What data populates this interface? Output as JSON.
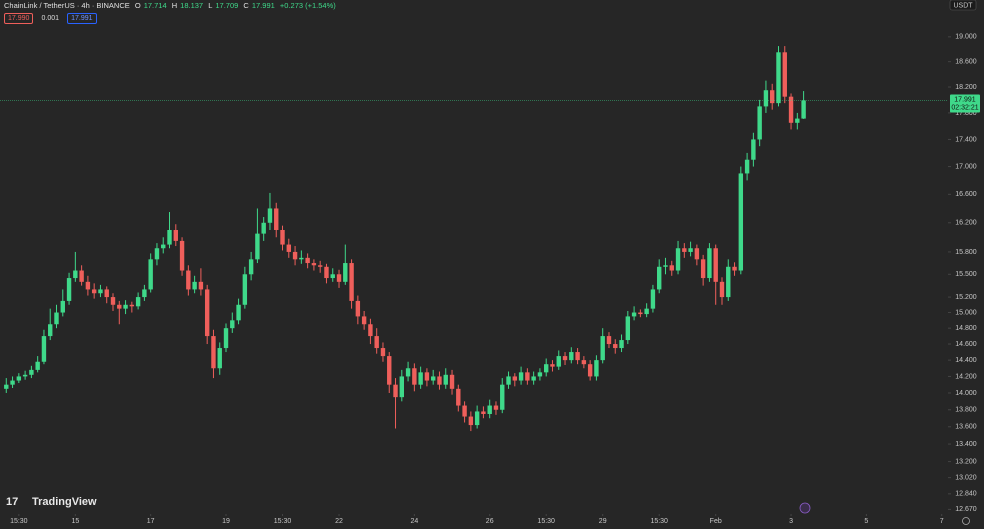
{
  "header": {
    "symbol": "ChainLink / TetherUS · 4h · BINANCE",
    "ohlc_letters": [
      "O",
      "H",
      "L",
      "C"
    ],
    "change": "+0.273 (+1.54%)",
    "bid": "17.990",
    "spread": "0.001",
    "ask": "17.991",
    "currency": "USDT",
    "countdown": "02:32:21",
    "logo": "TradingView"
  },
  "chart_data": {
    "type": "candlestick",
    "log_scale": true,
    "up_color": "#3fd98a",
    "down_color": "#ef5f5b",
    "last_price_line": true,
    "xlim": [
      -1,
      150
    ],
    "ylim": [
      12.62,
      19.61
    ],
    "xticks": [
      {
        "value": 2,
        "label": "15:30"
      },
      {
        "value": 11,
        "label": "15"
      },
      {
        "value": 23,
        "label": "17"
      },
      {
        "value": 35,
        "label": "19"
      },
      {
        "value": 44,
        "label": "15:30"
      },
      {
        "value": 53,
        "label": "22"
      },
      {
        "value": 65,
        "label": "24"
      },
      {
        "value": 77,
        "label": "26"
      },
      {
        "value": 86,
        "label": "15:30"
      },
      {
        "value": 95,
        "label": "29"
      },
      {
        "value": 104,
        "label": "15:30"
      },
      {
        "value": 113,
        "label": "Feb"
      },
      {
        "value": 125,
        "label": "3"
      },
      {
        "value": 137,
        "label": "5"
      },
      {
        "value": 149,
        "label": "7"
      }
    ],
    "yticks": [
      {
        "value": 19,
        "label": "19.000"
      },
      {
        "value": 18.6,
        "label": "18.600"
      },
      {
        "value": 18.2,
        "label": "18.200"
      },
      {
        "value": 17.8,
        "label": "17.800"
      },
      {
        "value": 17.4,
        "label": "17.400"
      },
      {
        "value": 17,
        "label": "17.000"
      },
      {
        "value": 16.6,
        "label": "16.600"
      },
      {
        "value": 16.2,
        "label": "16.200"
      },
      {
        "value": 15.8,
        "label": "15.800"
      },
      {
        "value": 15.5,
        "label": "15.500"
      },
      {
        "value": 15.2,
        "label": "15.200"
      },
      {
        "value": 15,
        "label": "15.000"
      },
      {
        "value": 14.8,
        "label": "14.800"
      },
      {
        "value": 14.6,
        "label": "14.600"
      },
      {
        "value": 14.4,
        "label": "14.400"
      },
      {
        "value": 14.2,
        "label": "14.200"
      },
      {
        "value": 14,
        "label": "14.000"
      },
      {
        "value": 13.8,
        "label": "13.800"
      },
      {
        "value": 13.6,
        "label": "13.600"
      },
      {
        "value": 13.4,
        "label": "13.400"
      },
      {
        "value": 13.2,
        "label": "13.200"
      },
      {
        "value": 13.02,
        "label": "13.020"
      },
      {
        "value": 12.84,
        "label": "12.840"
      },
      {
        "value": 12.67,
        "label": "12.670"
      }
    ],
    "ohlc": [
      [
        14.05,
        14.18,
        14.0,
        14.1
      ],
      [
        14.1,
        14.2,
        14.06,
        14.15
      ],
      [
        14.15,
        14.24,
        14.12,
        14.2
      ],
      [
        14.2,
        14.27,
        14.16,
        14.22
      ],
      [
        14.22,
        14.33,
        14.18,
        14.28
      ],
      [
        14.28,
        14.45,
        14.25,
        14.38
      ],
      [
        14.38,
        14.78,
        14.35,
        14.7
      ],
      [
        14.7,
        15.05,
        14.65,
        14.85
      ],
      [
        14.85,
        15.1,
        14.8,
        15.0
      ],
      [
        15.0,
        15.3,
        14.95,
        15.15
      ],
      [
        15.15,
        15.52,
        15.1,
        15.45
      ],
      [
        15.45,
        15.8,
        15.4,
        15.55
      ],
      [
        15.55,
        15.62,
        15.35,
        15.4
      ],
      [
        15.4,
        15.48,
        15.22,
        15.3
      ],
      [
        15.3,
        15.38,
        15.18,
        15.25
      ],
      [
        15.25,
        15.36,
        15.2,
        15.3
      ],
      [
        15.3,
        15.34,
        15.12,
        15.2
      ],
      [
        15.2,
        15.25,
        15.02,
        15.1
      ],
      [
        15.1,
        15.15,
        14.85,
        15.05
      ],
      [
        15.05,
        15.16,
        14.98,
        15.1
      ],
      [
        15.1,
        15.14,
        15.0,
        15.08
      ],
      [
        15.08,
        15.26,
        15.04,
        15.2
      ],
      [
        15.2,
        15.36,
        15.15,
        15.3
      ],
      [
        15.3,
        15.78,
        15.26,
        15.7
      ],
      [
        15.7,
        15.92,
        15.62,
        15.85
      ],
      [
        15.85,
        16.0,
        15.78,
        15.9
      ],
      [
        15.9,
        16.35,
        15.85,
        16.1
      ],
      [
        16.1,
        16.18,
        15.88,
        15.95
      ],
      [
        15.95,
        16.0,
        15.48,
        15.55
      ],
      [
        15.55,
        15.62,
        15.22,
        15.3
      ],
      [
        15.3,
        15.48,
        15.25,
        15.4
      ],
      [
        15.4,
        15.58,
        15.22,
        15.3
      ],
      [
        15.3,
        15.36,
        14.6,
        14.7
      ],
      [
        14.7,
        14.78,
        14.18,
        14.3
      ],
      [
        14.3,
        14.62,
        14.22,
        14.55
      ],
      [
        14.55,
        14.86,
        14.5,
        14.8
      ],
      [
        14.8,
        15.0,
        14.74,
        14.9
      ],
      [
        14.9,
        15.18,
        14.85,
        15.1
      ],
      [
        15.1,
        15.6,
        15.05,
        15.5
      ],
      [
        15.5,
        15.8,
        15.42,
        15.7
      ],
      [
        15.7,
        16.4,
        15.65,
        16.05
      ],
      [
        16.05,
        16.28,
        15.95,
        16.2
      ],
      [
        16.2,
        16.62,
        16.1,
        16.4
      ],
      [
        16.4,
        16.48,
        16.0,
        16.1
      ],
      [
        16.1,
        16.16,
        15.82,
        15.9
      ],
      [
        15.9,
        15.98,
        15.72,
        15.8
      ],
      [
        15.8,
        15.88,
        15.62,
        15.7
      ],
      [
        15.7,
        15.82,
        15.64,
        15.72
      ],
      [
        15.72,
        15.78,
        15.58,
        15.65
      ],
      [
        15.65,
        15.7,
        15.55,
        15.62
      ],
      [
        15.62,
        15.68,
        15.52,
        15.6
      ],
      [
        15.6,
        15.64,
        15.38,
        15.45
      ],
      [
        15.45,
        15.58,
        15.4,
        15.5
      ],
      [
        15.5,
        15.56,
        15.32,
        15.4
      ],
      [
        15.4,
        15.9,
        15.36,
        15.65
      ],
      [
        15.65,
        15.7,
        15.05,
        15.15
      ],
      [
        15.15,
        15.22,
        14.85,
        14.95
      ],
      [
        14.95,
        15.02,
        14.78,
        14.85
      ],
      [
        14.85,
        14.92,
        14.6,
        14.7
      ],
      [
        14.7,
        14.8,
        14.48,
        14.55
      ],
      [
        14.55,
        14.62,
        14.38,
        14.45
      ],
      [
        14.45,
        14.5,
        14.0,
        14.1
      ],
      [
        14.1,
        14.18,
        13.58,
        13.95
      ],
      [
        13.95,
        14.28,
        13.9,
        14.2
      ],
      [
        14.2,
        14.38,
        14.14,
        14.3
      ],
      [
        14.3,
        14.36,
        14.02,
        14.1
      ],
      [
        14.1,
        14.32,
        14.05,
        14.25
      ],
      [
        14.25,
        14.3,
        14.08,
        14.15
      ],
      [
        14.15,
        14.28,
        14.1,
        14.2
      ],
      [
        14.2,
        14.26,
        14.04,
        14.1
      ],
      [
        14.1,
        14.3,
        14.05,
        14.22
      ],
      [
        14.22,
        14.28,
        13.98,
        14.05
      ],
      [
        14.05,
        14.1,
        13.78,
        13.85
      ],
      [
        13.85,
        13.9,
        13.65,
        13.72
      ],
      [
        13.72,
        13.78,
        13.55,
        13.62
      ],
      [
        13.62,
        13.85,
        13.58,
        13.78
      ],
      [
        13.78,
        13.84,
        13.7,
        13.75
      ],
      [
        13.75,
        13.92,
        13.7,
        13.85
      ],
      [
        13.85,
        13.9,
        13.74,
        13.8
      ],
      [
        13.8,
        14.18,
        13.76,
        14.1
      ],
      [
        14.1,
        14.26,
        14.05,
        14.2
      ],
      [
        14.2,
        14.24,
        14.08,
        14.15
      ],
      [
        14.15,
        14.32,
        14.1,
        14.25
      ],
      [
        14.25,
        14.3,
        14.1,
        14.15
      ],
      [
        14.15,
        14.26,
        14.1,
        14.2
      ],
      [
        14.2,
        14.3,
        14.15,
        14.25
      ],
      [
        14.25,
        14.42,
        14.2,
        14.35
      ],
      [
        14.35,
        14.4,
        14.26,
        14.32
      ],
      [
        14.32,
        14.52,
        14.28,
        14.45
      ],
      [
        14.45,
        14.5,
        14.34,
        14.4
      ],
      [
        14.4,
        14.56,
        14.36,
        14.5
      ],
      [
        14.5,
        14.55,
        14.35,
        14.4
      ],
      [
        14.4,
        14.45,
        14.3,
        14.35
      ],
      [
        14.35,
        14.4,
        14.15,
        14.2
      ],
      [
        14.2,
        14.46,
        14.15,
        14.4
      ],
      [
        14.4,
        14.8,
        14.36,
        14.7
      ],
      [
        14.7,
        14.75,
        14.55,
        14.6
      ],
      [
        14.6,
        14.66,
        14.48,
        14.55
      ],
      [
        14.55,
        14.72,
        14.5,
        14.65
      ],
      [
        14.65,
        15.02,
        14.6,
        14.95
      ],
      [
        14.95,
        15.08,
        14.9,
        15.0
      ],
      [
        15.0,
        15.04,
        14.94,
        14.98
      ],
      [
        14.98,
        15.12,
        14.94,
        15.05
      ],
      [
        15.05,
        15.36,
        15.0,
        15.3
      ],
      [
        15.3,
        15.7,
        15.25,
        15.6
      ],
      [
        15.6,
        15.72,
        15.5,
        15.62
      ],
      [
        15.62,
        15.68,
        15.48,
        15.55
      ],
      [
        15.55,
        15.95,
        15.5,
        15.85
      ],
      [
        15.85,
        15.92,
        15.72,
        15.8
      ],
      [
        15.8,
        15.94,
        15.74,
        15.85
      ],
      [
        15.85,
        15.9,
        15.62,
        15.7
      ],
      [
        15.7,
        15.76,
        15.35,
        15.45
      ],
      [
        15.45,
        15.92,
        15.4,
        15.85
      ],
      [
        15.85,
        15.9,
        15.1,
        15.4
      ],
      [
        15.4,
        15.46,
        15.1,
        15.2
      ],
      [
        15.2,
        15.7,
        15.15,
        15.6
      ],
      [
        15.6,
        15.66,
        15.48,
        15.55
      ],
      [
        15.55,
        17.0,
        15.5,
        16.9
      ],
      [
        16.9,
        17.2,
        16.8,
        17.1
      ],
      [
        17.1,
        17.5,
        17.0,
        17.4
      ],
      [
        17.4,
        18.0,
        17.3,
        17.9
      ],
      [
        17.9,
        18.3,
        17.8,
        18.15
      ],
      [
        18.15,
        18.25,
        17.85,
        17.95
      ],
      [
        17.95,
        18.85,
        17.9,
        18.75
      ],
      [
        18.75,
        18.85,
        17.95,
        18.05
      ],
      [
        18.05,
        18.1,
        17.55,
        17.65
      ],
      [
        17.65,
        17.8,
        17.55,
        17.714
      ],
      [
        17.714,
        18.137,
        17.709,
        17.991
      ]
    ]
  }
}
